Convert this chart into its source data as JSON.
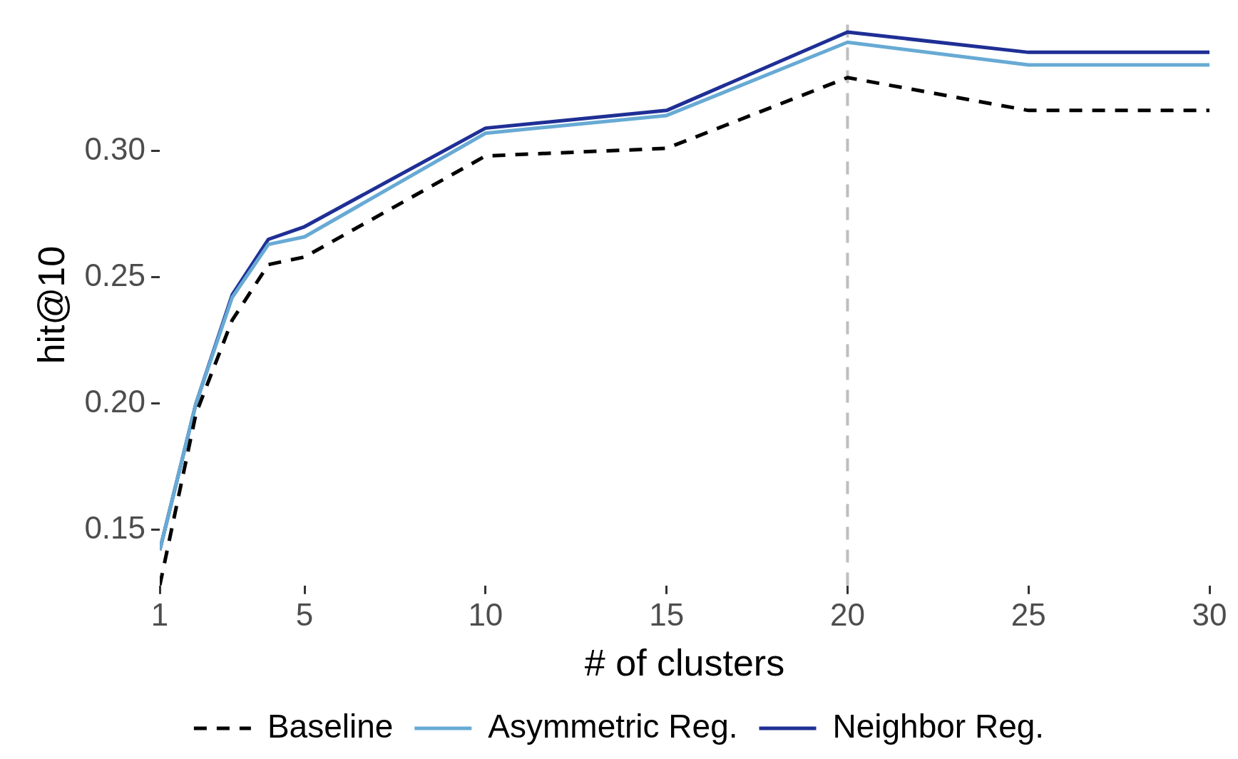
{
  "chart_data": {
    "type": "line",
    "xlabel": "# of clusters",
    "ylabel": "hit@10",
    "x": [
      1,
      2,
      3,
      4,
      5,
      10,
      15,
      20,
      25,
      30
    ],
    "series": [
      {
        "name": "Baseline",
        "color": "#000000",
        "line_style": "dashed",
        "values": [
          0.128,
          0.196,
          0.233,
          0.255,
          0.258,
          0.298,
          0.301,
          0.329,
          0.316,
          0.316
        ]
      },
      {
        "name": "Asymmetric Reg.",
        "color": "#67aad4",
        "line_style": "solid",
        "values": [
          0.142,
          0.2,
          0.242,
          0.263,
          0.266,
          0.307,
          0.314,
          0.343,
          0.334,
          0.334
        ]
      },
      {
        "name": "Neighbor Reg.",
        "color": "#1f2f95",
        "line_style": "solid",
        "values": [
          0.142,
          0.2,
          0.243,
          0.265,
          0.27,
          0.309,
          0.316,
          0.347,
          0.339,
          0.339
        ]
      }
    ],
    "xlim": [
      1,
      30
    ],
    "xticks": [
      1,
      5,
      10,
      15,
      20,
      25,
      30
    ],
    "ylim": [
      0.128,
      0.35
    ],
    "yticks": [
      {
        "value": 0.15,
        "label": "0.15"
      },
      {
        "value": 0.2,
        "label": "0.20"
      },
      {
        "value": 0.25,
        "label": "0.25"
      },
      {
        "value": 0.3,
        "label": "0.30"
      }
    ],
    "ref_lines": [
      {
        "axis": "x",
        "value": 20,
        "color": "#bebebe",
        "line_style": "dashed"
      }
    ],
    "grid": false,
    "legend": "bottom",
    "marker": "none"
  }
}
